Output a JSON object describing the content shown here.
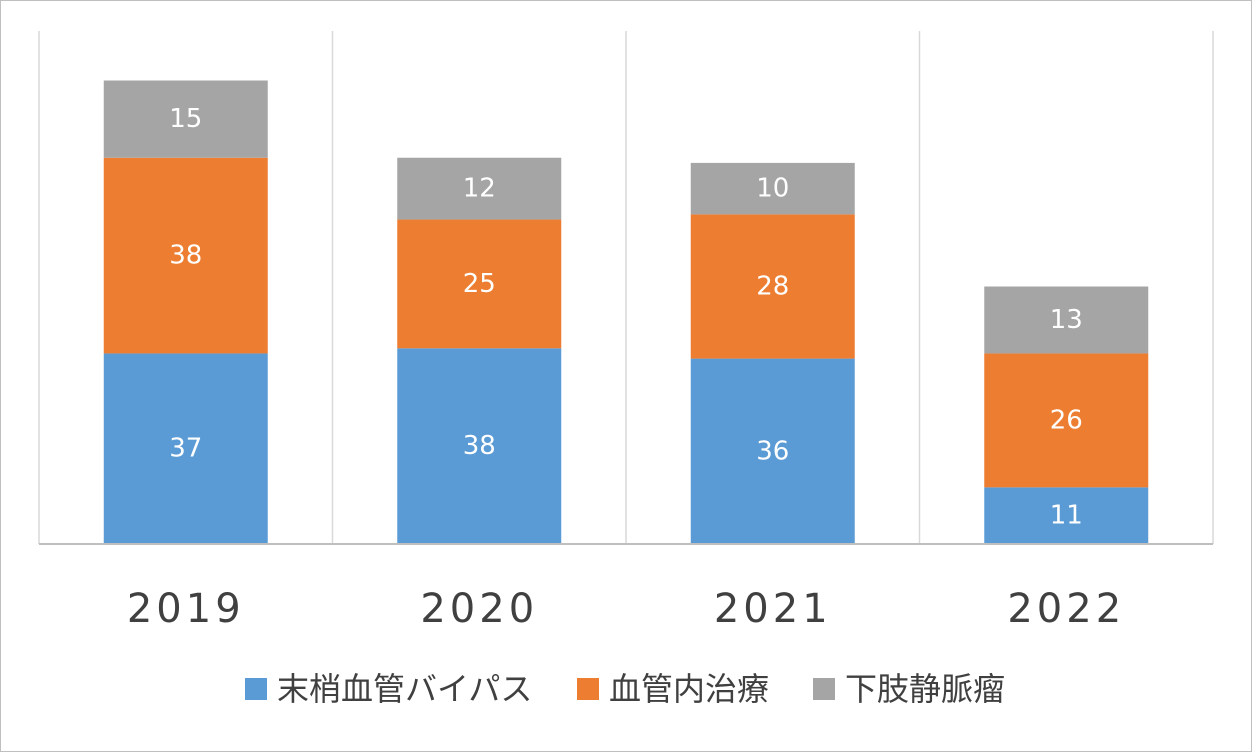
{
  "chart_data": {
    "type": "bar",
    "stacked": true,
    "categories": [
      "2019",
      "2020",
      "2021",
      "2022"
    ],
    "series": [
      {
        "name": "末梢血管バイパス",
        "values": [
          37,
          38,
          36,
          11
        ],
        "color": "#5B9BD5"
      },
      {
        "name": "血管内治療",
        "values": [
          38,
          25,
          28,
          26
        ],
        "color": "#ED7D31"
      },
      {
        "name": "下肢静脈瘤",
        "values": [
          15,
          12,
          10,
          13
        ],
        "color": "#A5A5A5"
      }
    ],
    "title": "",
    "xlabel": "",
    "ylabel": "",
    "ylim": [
      0,
      100
    ],
    "grid": "vertical separators between categories",
    "data_labels": true,
    "legend": "bottom"
  }
}
